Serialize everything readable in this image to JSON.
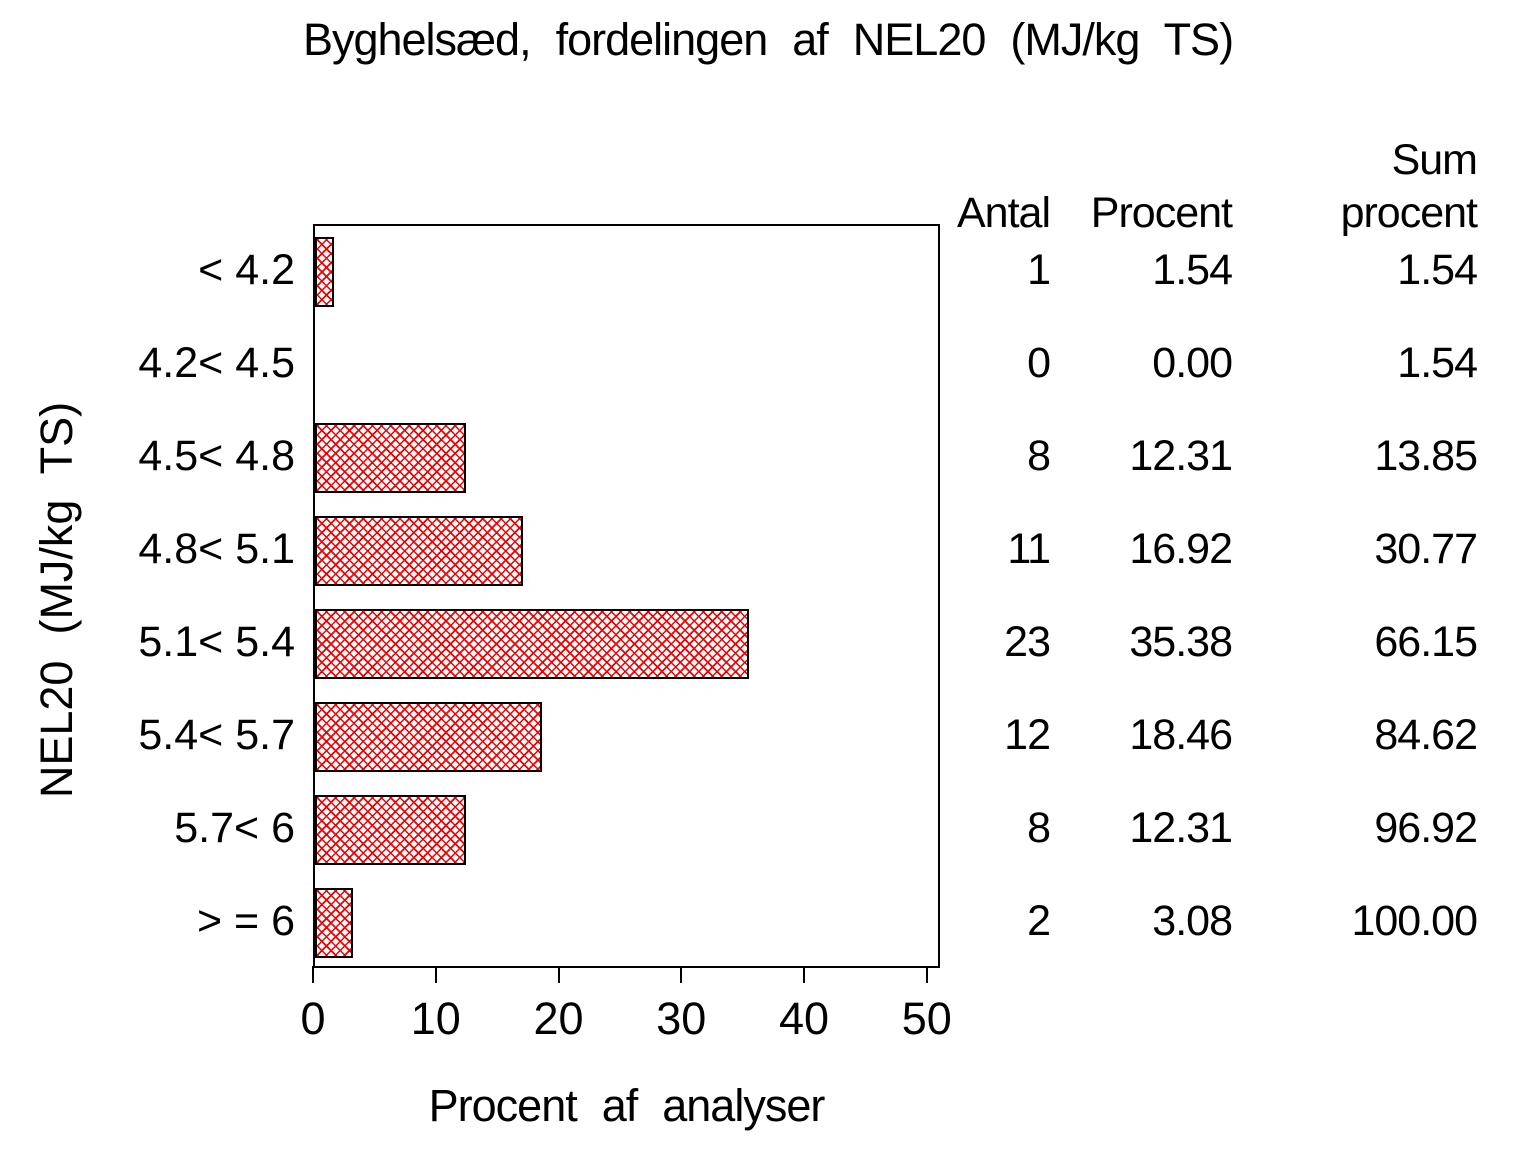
{
  "chart_data": {
    "type": "bar",
    "orientation": "horizontal",
    "title": "Byghelsæd, fordelingen af NEL20 (MJ/kg TS)",
    "ylabel": "NEL20 (MJ/kg TS)",
    "xlabel": "Procent af analyser",
    "categories": [
      "< 4.2",
      "4.2< 4.5",
      "4.5< 4.8",
      "4.8< 5.1",
      "5.1< 5.4",
      "5.4< 5.7",
      "5.7< 6",
      "> = 6"
    ],
    "values": [
      1.54,
      0.0,
      12.31,
      16.92,
      35.38,
      18.46,
      12.31,
      3.08
    ],
    "counts": [
      1,
      0,
      8,
      11,
      23,
      12,
      8,
      2
    ],
    "cumulative_percent": [
      1.54,
      1.54,
      13.85,
      30.77,
      66.15,
      84.62,
      96.92,
      100.0
    ],
    "xlim": [
      0,
      50
    ],
    "xticks": [
      0,
      10,
      20,
      30,
      40,
      50
    ],
    "xtick_labels": [
      "0",
      "10",
      "20",
      "30",
      "40",
      "50"
    ],
    "grid": false,
    "bar_hatch_color": "#f00000",
    "bar_border_color": "#000000",
    "axis_color": "#000000"
  },
  "table": {
    "headers": {
      "antal": "Antal",
      "procent": "Procent",
      "sum_line1": "Sum",
      "sum_line2": "procent"
    },
    "rows": [
      {
        "antal": "1",
        "procent": "1.54",
        "sum": "1.54"
      },
      {
        "antal": "0",
        "procent": "0.00",
        "sum": "1.54"
      },
      {
        "antal": "8",
        "procent": "12.31",
        "sum": "13.85"
      },
      {
        "antal": "11",
        "procent": "16.92",
        "sum": "30.77"
      },
      {
        "antal": "23",
        "procent": "35.38",
        "sum": "66.15"
      },
      {
        "antal": "12",
        "procent": "18.46",
        "sum": "84.62"
      },
      {
        "antal": "8",
        "procent": "12.31",
        "sum": "96.92"
      },
      {
        "antal": "2",
        "procent": "3.08",
        "sum": "100.00"
      }
    ]
  }
}
